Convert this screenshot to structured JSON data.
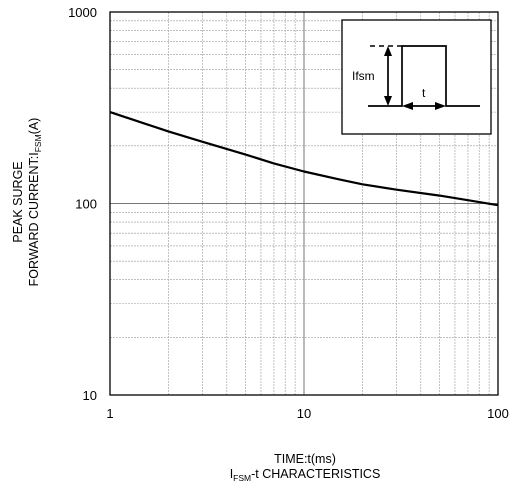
{
  "chart_data": {
    "type": "line",
    "x_scale": "log",
    "y_scale": "log",
    "xlim": [
      1,
      100
    ],
    "ylim": [
      10,
      1000
    ],
    "grid": true,
    "x_ticks": [
      {
        "value": 1,
        "label": "1"
      },
      {
        "value": 10,
        "label": "10"
      },
      {
        "value": 100,
        "label": "100"
      }
    ],
    "y_ticks": [
      {
        "value": 10,
        "label": "10"
      },
      {
        "value": 100,
        "label": "100"
      },
      {
        "value": 1000,
        "label": "1000"
      }
    ],
    "xlabel": {
      "main": "TIME:t(ms)"
    },
    "caption": {
      "prefix": "I",
      "sub": "FSM",
      "suffix": "-t CHARACTERISTICS"
    },
    "ylabel": {
      "line1": "PEAK SURGE",
      "line2_prefix": "FORWARD CURRENT:I",
      "line2_sub": "FSM",
      "line2_suffix": "(A)"
    },
    "series": [
      {
        "x": [
          1,
          1.5,
          2,
          3,
          5,
          7,
          10,
          15,
          20,
          30,
          50,
          70,
          100
        ],
        "y": [
          300,
          262,
          238,
          210,
          180,
          162,
          147,
          134,
          126,
          118,
          110,
          104,
          98
        ],
        "color": "#000000"
      }
    ],
    "inset": {
      "label_ifsm": "Ifsm",
      "label_t": "t"
    }
  }
}
